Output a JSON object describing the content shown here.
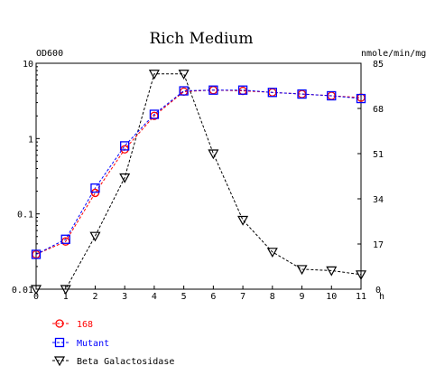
{
  "chart_data": {
    "type": "line",
    "title": "Rich Medium",
    "y_left_label": "OD600",
    "y_right_label": "nmole/min/mg",
    "x_unit_label": "h",
    "x": [
      0,
      1,
      2,
      3,
      4,
      5,
      6,
      7,
      8,
      9,
      10,
      11
    ],
    "x_ticks": [
      "0",
      "1",
      "2",
      "3",
      "4",
      "5",
      "6",
      "7",
      "8",
      "9",
      "10",
      "11"
    ],
    "y_left_ticks": [
      {
        "value": 10,
        "label": "10"
      },
      {
        "value": 1,
        "label": "1"
      },
      {
        "value": 0.1,
        "label": "0.1"
      },
      {
        "value": 0.01,
        "label": "0.01"
      }
    ],
    "y_right_ticks": [
      {
        "value": 85,
        "label": "85"
      },
      {
        "value": 68,
        "label": "68"
      },
      {
        "value": 51,
        "label": "51"
      },
      {
        "value": 34,
        "label": "34"
      },
      {
        "value": 17,
        "label": "17"
      },
      {
        "value": 0,
        "label": "0"
      }
    ],
    "ylim_left": [
      0.01,
      10
    ],
    "ylim_right": [
      0,
      85
    ],
    "xlim": [
      0,
      11
    ],
    "y_left_scale": "log",
    "y_right_scale": "linear",
    "grid": false,
    "legend_placement": "bottom-left",
    "series": [
      {
        "name": "168",
        "axis": "left",
        "color": "#ff0000",
        "marker": "circle",
        "values": [
          0.029,
          0.043,
          0.19,
          0.72,
          2.0,
          4.2,
          4.4,
          4.3,
          4.1,
          3.9,
          3.7,
          3.5
        ]
      },
      {
        "name": "Mutant",
        "axis": "left",
        "color": "#0000ff",
        "marker": "square",
        "values": [
          0.029,
          0.046,
          0.22,
          0.8,
          2.1,
          4.3,
          4.4,
          4.4,
          4.1,
          3.9,
          3.7,
          3.4
        ]
      },
      {
        "name": "Beta Galactosidase",
        "axis": "right",
        "color": "#000000",
        "marker": "triangle-down",
        "values": [
          0,
          0,
          20,
          42,
          81,
          81,
          51,
          26,
          14,
          7.5,
          7,
          5.5
        ]
      }
    ]
  }
}
